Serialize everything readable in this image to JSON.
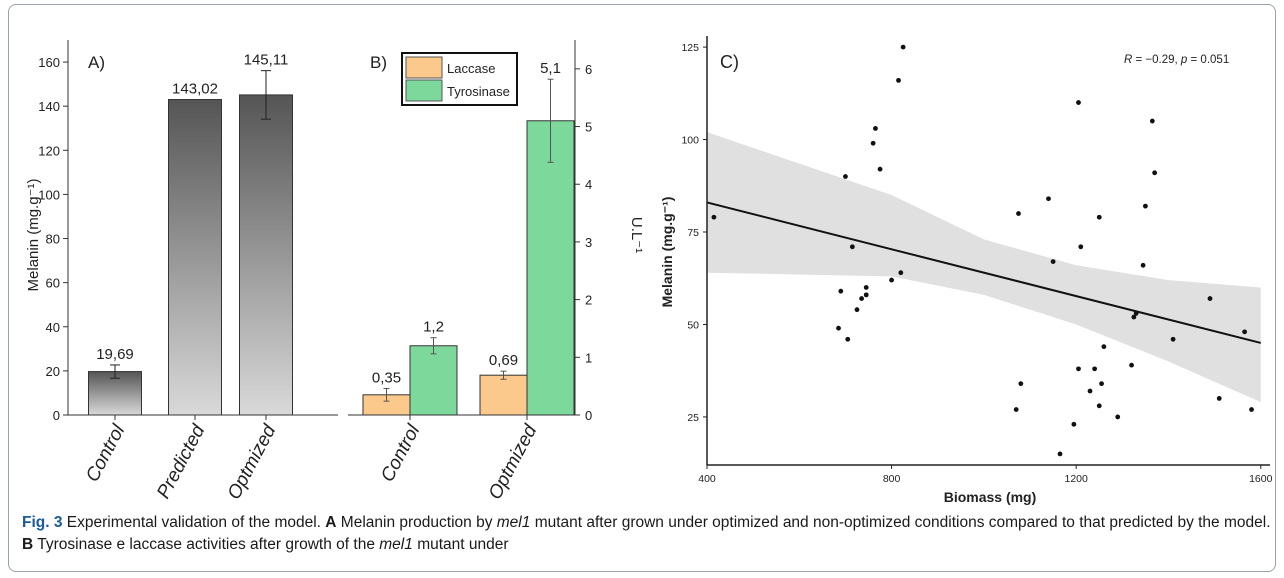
{
  "colors": {
    "bar_dark": "#555555",
    "bar_light": "#d9d9d9",
    "laccase": "#fcc98c",
    "tyrosinase": "#7dd89b",
    "band": "#e0e0e0",
    "accent_fig": "#1a5aa0"
  },
  "chart_data": [
    {
      "type": "bar",
      "panel_label": "A)",
      "ylabel": "Melanin (mg.g⁻¹)",
      "ylim": [
        0,
        170
      ],
      "yticks": [
        0,
        20,
        40,
        60,
        80,
        100,
        120,
        140,
        160
      ],
      "categories": [
        "Control",
        "Predicted",
        "Optmized"
      ],
      "values": [
        19.69,
        143.02,
        145.11
      ],
      "value_labels": [
        "19,69",
        "143,02",
        "145,11"
      ],
      "error": [
        3,
        0,
        11
      ]
    },
    {
      "type": "bar",
      "panel_label": "B)",
      "ylabel": "U.L⁻¹",
      "ylim": [
        0,
        6.5
      ],
      "yticks": [
        0,
        1,
        2,
        3,
        4,
        5,
        6
      ],
      "categories": [
        "Control",
        "Optmized"
      ],
      "series": [
        {
          "name": "Laccase",
          "values": [
            0.35,
            0.69
          ],
          "value_labels": [
            "0,35",
            "0,69"
          ],
          "error": [
            0.11,
            0.07
          ]
        },
        {
          "name": "Tyrosinase",
          "values": [
            1.2,
            5.1
          ],
          "value_labels": [
            "1,2",
            "5,1"
          ],
          "error": [
            0.14,
            0.72
          ]
        }
      ],
      "legend": "top-left"
    },
    {
      "type": "scatter",
      "panel_label": "C)",
      "xlabel": "Biomass (mg)",
      "ylabel": "Melanin (mg.g⁻¹)",
      "xlim": [
        400,
        1620
      ],
      "ylim": [
        12,
        128
      ],
      "xticks": [
        400,
        800,
        1200,
        1600
      ],
      "yticks": [
        25,
        50,
        75,
        100,
        125
      ],
      "annotation": {
        "prefix": "R",
        "text": " = −0.29, ",
        "p": "p",
        "p_text": " = 0.051"
      },
      "points": [
        [
          415,
          79
        ],
        [
          700,
          90
        ],
        [
          715,
          71
        ],
        [
          690,
          59
        ],
        [
          685,
          49
        ],
        [
          705,
          46
        ],
        [
          725,
          54
        ],
        [
          735,
          57
        ],
        [
          745,
          60
        ],
        [
          745,
          58
        ],
        [
          760,
          99
        ],
        [
          765,
          103
        ],
        [
          775,
          92
        ],
        [
          800,
          62
        ],
        [
          815,
          116
        ],
        [
          820,
          64
        ],
        [
          825,
          125
        ],
        [
          1075,
          80
        ],
        [
          1080,
          34
        ],
        [
          1070,
          27
        ],
        [
          1140,
          84
        ],
        [
          1150,
          67
        ],
        [
          1165,
          15
        ],
        [
          1195,
          23
        ],
        [
          1205,
          38
        ],
        [
          1210,
          71
        ],
        [
          1205,
          110
        ],
        [
          1230,
          32
        ],
        [
          1240,
          38
        ],
        [
          1250,
          28
        ],
        [
          1255,
          34
        ],
        [
          1260,
          44
        ],
        [
          1250,
          79
        ],
        [
          1290,
          25
        ],
        [
          1320,
          39
        ],
        [
          1330,
          53
        ],
        [
          1325,
          52
        ],
        [
          1345,
          66
        ],
        [
          1350,
          82
        ],
        [
          1365,
          105
        ],
        [
          1370,
          91
        ],
        [
          1410,
          46
        ],
        [
          1490,
          57
        ],
        [
          1510,
          30
        ],
        [
          1565,
          48
        ],
        [
          1580,
          27
        ]
      ],
      "fit": {
        "x": [
          400,
          1600
        ],
        "y": [
          83,
          45
        ]
      },
      "band_upper": [
        [
          400,
          102
        ],
        [
          800,
          85
        ],
        [
          1000,
          73
        ],
        [
          1200,
          66
        ],
        [
          1400,
          62
        ],
        [
          1600,
          60
        ]
      ],
      "band_lower": [
        [
          400,
          64
        ],
        [
          800,
          63
        ],
        [
          1000,
          58
        ],
        [
          1200,
          50
        ],
        [
          1400,
          40
        ],
        [
          1600,
          29
        ]
      ]
    }
  ],
  "caption": {
    "fig_label": "Fig. 3",
    "title": "Experimental validation of the model.",
    "a_label": "A",
    "a_text_1": "Melanin production by",
    "mutant_1": "mel1",
    "a_text_2": "mutant after grown under optimized and non-optimized conditions compared to that predicted by the model.",
    "b_label": "B",
    "b_text_1": "Tyrosinase e laccase activities after growth of the",
    "mutant_2": "mel1",
    "b_text_2": "mutant under"
  }
}
